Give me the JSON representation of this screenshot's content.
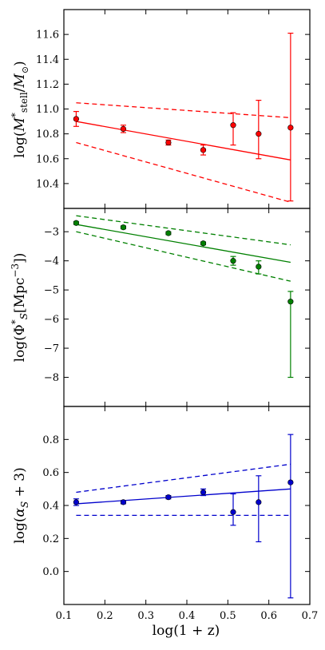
{
  "chart_data": [
    {
      "type": "scatter",
      "panel": "top",
      "ylabel_parts": [
        "log(",
        "M",
        "*",
        "stell",
        "/",
        "M",
        "⊙",
        ")"
      ],
      "ylim": [
        10.2,
        11.8
      ],
      "yticks": [
        "10.4",
        "10.6",
        "10.8",
        "11.0",
        "11.2",
        "11.4",
        "11.6"
      ],
      "color": "#ff0000",
      "points": [
        {
          "x": 0.13,
          "y": 10.92,
          "ylo": 10.86,
          "yhi": 10.98
        },
        {
          "x": 0.245,
          "y": 10.84,
          "ylo": 10.81,
          "yhi": 10.87
        },
        {
          "x": 0.355,
          "y": 10.73,
          "ylo": 10.71,
          "yhi": 10.75
        },
        {
          "x": 0.44,
          "y": 10.67,
          "ylo": 10.63,
          "yhi": 10.71
        },
        {
          "x": 0.513,
          "y": 10.87,
          "ylo": 10.71,
          "yhi": 10.97
        },
        {
          "x": 0.575,
          "y": 10.8,
          "ylo": 10.6,
          "yhi": 11.07
        },
        {
          "x": 0.653,
          "y": 10.85,
          "ylo": 10.26,
          "yhi": 11.61
        }
      ],
      "fit": {
        "x": [
          0.13,
          0.653
        ],
        "y": [
          10.9,
          10.59
        ]
      },
      "upper": {
        "x": [
          0.13,
          0.653
        ],
        "y": [
          11.05,
          10.93
        ]
      },
      "lower": {
        "x": [
          0.13,
          0.653
        ],
        "y": [
          10.73,
          10.25
        ]
      }
    },
    {
      "type": "scatter",
      "panel": "middle",
      "ylabel_parts": [
        "log(",
        "Φ",
        "*",
        "S",
        "[Mpc",
        "−3",
        "])"
      ],
      "ylim": [
        -9,
        -2.2
      ],
      "yticks": [
        "−8",
        "−7",
        "−6",
        "−5",
        "−4",
        "−3"
      ],
      "color": "#008000",
      "points": [
        {
          "x": 0.13,
          "y": -2.7,
          "ylo": -2.75,
          "yhi": -2.65
        },
        {
          "x": 0.245,
          "y": -2.85,
          "ylo": -2.9,
          "yhi": -2.8
        },
        {
          "x": 0.355,
          "y": -3.05,
          "ylo": -3.1,
          "yhi": -3.0
        },
        {
          "x": 0.44,
          "y": -3.4,
          "ylo": -3.45,
          "yhi": -3.35
        },
        {
          "x": 0.513,
          "y": -4.0,
          "ylo": -4.15,
          "yhi": -3.85
        },
        {
          "x": 0.575,
          "y": -4.2,
          "ylo": -4.45,
          "yhi": -4.0
        },
        {
          "x": 0.653,
          "y": -5.4,
          "ylo": -8.0,
          "yhi": -5.05
        }
      ],
      "fit": {
        "x": [
          0.13,
          0.653
        ],
        "y": [
          -2.75,
          -4.05
        ]
      },
      "upper": {
        "x": [
          0.13,
          0.653
        ],
        "y": [
          -2.45,
          -3.45
        ]
      },
      "lower": {
        "x": [
          0.13,
          0.653
        ],
        "y": [
          -3.0,
          -4.7
        ]
      }
    },
    {
      "type": "scatter",
      "panel": "bottom",
      "ylabel_parts": [
        "log(",
        "α",
        "S",
        " + 3)"
      ],
      "xlabel": "log(1 + z)",
      "xlim": [
        0.1,
        0.7
      ],
      "xticks": [
        "0.1",
        "0.2",
        "0.3",
        "0.4",
        "0.5",
        "0.6",
        "0.7"
      ],
      "ylim": [
        -0.2,
        1.0
      ],
      "yticks": [
        "0.0",
        "0.2",
        "0.4",
        "0.6",
        "0.8"
      ],
      "color": "#0000cc",
      "points": [
        {
          "x": 0.13,
          "y": 0.42,
          "ylo": 0.4,
          "yhi": 0.44
        },
        {
          "x": 0.245,
          "y": 0.42,
          "ylo": 0.41,
          "yhi": 0.43
        },
        {
          "x": 0.355,
          "y": 0.45,
          "ylo": 0.44,
          "yhi": 0.46
        },
        {
          "x": 0.44,
          "y": 0.48,
          "ylo": 0.46,
          "yhi": 0.5
        },
        {
          "x": 0.513,
          "y": 0.36,
          "ylo": 0.28,
          "yhi": 0.47
        },
        {
          "x": 0.575,
          "y": 0.42,
          "ylo": 0.18,
          "yhi": 0.58
        },
        {
          "x": 0.653,
          "y": 0.54,
          "ylo": -0.16,
          "yhi": 0.83
        }
      ],
      "fit": {
        "x": [
          0.13,
          0.653
        ],
        "y": [
          0.41,
          0.5
        ]
      },
      "upper": {
        "x": [
          0.13,
          0.653
        ],
        "y": [
          0.48,
          0.65
        ]
      },
      "lower": {
        "x": [
          0.13,
          0.653
        ],
        "y": [
          0.34,
          0.34
        ]
      }
    }
  ]
}
